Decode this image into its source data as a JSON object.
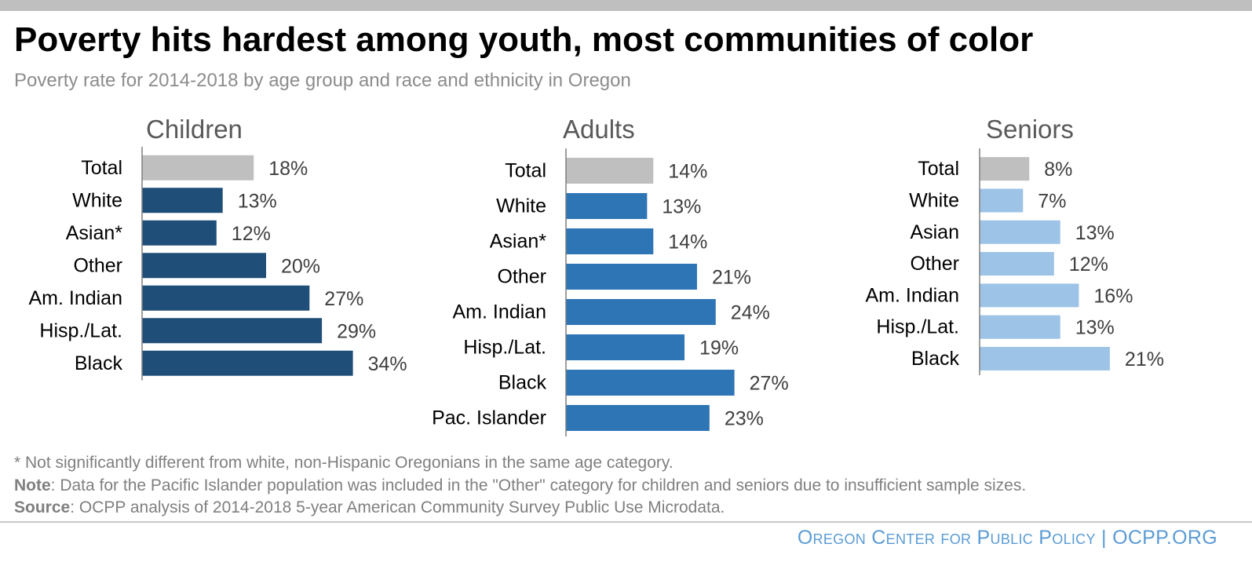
{
  "header": {
    "title": "Poverty hits hardest among youth, most communities of color",
    "subtitle": "Poverty rate for 2014-2018 by age group and race and ethnicity in Oregon"
  },
  "chart_data": [
    {
      "type": "bar",
      "orientation": "horizontal",
      "title": "Children",
      "categories": [
        "Total",
        "White",
        "Asian*",
        "Other",
        "Am. Indian",
        "Hisp./Lat.",
        "Black"
      ],
      "values": [
        18,
        13,
        12,
        20,
        27,
        29,
        34
      ],
      "value_labels": [
        "18%",
        "13%",
        "12%",
        "20%",
        "27%",
        "29%",
        "34%"
      ],
      "unit": "%",
      "colors": [
        "#bfbfbf",
        "#1f4e79",
        "#1f4e79",
        "#1f4e79",
        "#1f4e79",
        "#1f4e79",
        "#1f4e79"
      ],
      "xlim": [
        0,
        40
      ],
      "grid": false
    },
    {
      "type": "bar",
      "orientation": "horizontal",
      "title": "Adults",
      "categories": [
        "Total",
        "White",
        "Asian*",
        "Other",
        "Am. Indian",
        "Hisp./Lat.",
        "Black",
        "Pac. Islander"
      ],
      "values": [
        14,
        13,
        14,
        21,
        24,
        19,
        27,
        23
      ],
      "value_labels": [
        "14%",
        "13%",
        "14%",
        "21%",
        "24%",
        "19%",
        "27%",
        "23%"
      ],
      "unit": "%",
      "colors": [
        "#bfbfbf",
        "#2e75b6",
        "#2e75b6",
        "#2e75b6",
        "#2e75b6",
        "#2e75b6",
        "#2e75b6",
        "#2e75b6"
      ],
      "xlim": [
        0,
        40
      ],
      "grid": false
    },
    {
      "type": "bar",
      "orientation": "horizontal",
      "title": "Seniors",
      "categories": [
        "Total",
        "White",
        "Asian",
        "Other",
        "Am. Indian",
        "Hisp./Lat.",
        "Black"
      ],
      "values": [
        8,
        7,
        13,
        12,
        16,
        13,
        21
      ],
      "value_labels": [
        "8%",
        "7%",
        "13%",
        "12%",
        "16%",
        "13%",
        "21%"
      ],
      "unit": "%",
      "colors": [
        "#bfbfbf",
        "#9dc3e6",
        "#9dc3e6",
        "#9dc3e6",
        "#9dc3e6",
        "#9dc3e6",
        "#9dc3e6"
      ],
      "xlim": [
        0,
        40
      ],
      "grid": false
    }
  ],
  "footer": {
    "asterisk_note": "* Not significantly different from white, non-Hispanic Oregonians in the same age category.",
    "note_label": "Note",
    "note_text": ": Data for the Pacific Islander population was included in the \"Other\" category for children and seniors due to insufficient sample sizes.",
    "source_label": "Source",
    "source_text": ": OCPP analysis of 2014-2018 5-year American Community Survey Public Use Microdata.",
    "brand": "Oregon Center for Public Policy | OCPP.ORG"
  }
}
